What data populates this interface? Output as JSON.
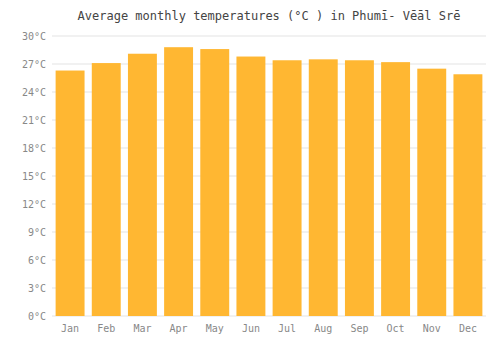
{
  "chart_data": {
    "type": "bar",
    "title": "Average monthly temperatures (°C ) in Phumī- Vēāl Srē",
    "categories": [
      "Jan",
      "Feb",
      "Mar",
      "Apr",
      "May",
      "Jun",
      "Jul",
      "Aug",
      "Sep",
      "Oct",
      "Nov",
      "Dec"
    ],
    "values": [
      26.3,
      27.1,
      28.1,
      28.8,
      28.6,
      27.8,
      27.4,
      27.5,
      27.4,
      27.2,
      26.5,
      25.9
    ],
    "color": "#FFB732",
    "ylim": [
      0,
      30
    ],
    "yticks": [
      {
        "value": 0,
        "label": "0°C"
      },
      {
        "value": 3,
        "label": "3°C"
      },
      {
        "value": 6,
        "label": "6°C"
      },
      {
        "value": 9,
        "label": "9°C"
      },
      {
        "value": 12,
        "label": "12°C"
      },
      {
        "value": 15,
        "label": "15°C"
      },
      {
        "value": 18,
        "label": "18°C"
      },
      {
        "value": 21,
        "label": "21°C"
      },
      {
        "value": 24,
        "label": "24°C"
      },
      {
        "value": 27,
        "label": "27°C"
      },
      {
        "value": 30,
        "label": "30°C"
      }
    ],
    "grid": true
  }
}
